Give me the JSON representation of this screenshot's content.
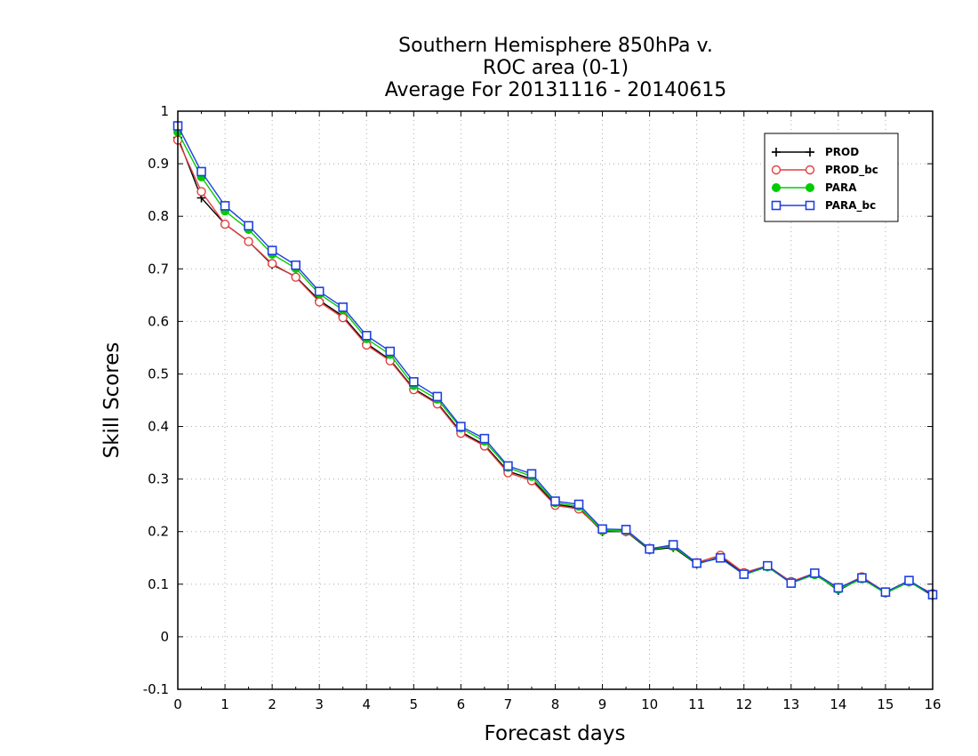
{
  "chart_data": {
    "type": "line",
    "title_lines": [
      "Southern Hemisphere 850hPa v.",
      "ROC area (0-1)",
      "Average For 20131116 - 20140615"
    ],
    "xlabel": "Forecast days",
    "ylabel": "Skill Scores",
    "xlim": [
      0,
      16
    ],
    "ylim": [
      -0.1,
      1
    ],
    "x_ticks": [
      "0",
      "1",
      "2",
      "3",
      "4",
      "5",
      "6",
      "7",
      "8",
      "9",
      "10",
      "11",
      "12",
      "13",
      "14",
      "15",
      "16"
    ],
    "y_ticks": [
      "-0.1",
      "0",
      "0.1",
      "0.2",
      "0.3",
      "0.4",
      "0.5",
      "0.6",
      "0.7",
      "0.8",
      "0.9",
      "1"
    ],
    "grid": true,
    "legend_position": "top-right",
    "x": [
      0,
      0.5,
      1,
      1.5,
      2,
      2.5,
      3,
      3.5,
      4,
      4.5,
      5,
      5.5,
      6,
      6.5,
      7,
      7.5,
      8,
      8.5,
      9,
      9.5,
      10,
      10.5,
      11,
      11.5,
      12,
      12.5,
      13,
      13.5,
      14,
      14.5,
      15,
      15.5,
      16
    ],
    "series": [
      {
        "name": "PROD",
        "color": "#000000",
        "marker": "plus",
        "values": [
          0.95,
          0.835,
          0.785,
          0.752,
          0.708,
          0.685,
          0.64,
          0.61,
          0.558,
          0.527,
          0.472,
          0.445,
          0.39,
          0.365,
          0.315,
          0.3,
          0.252,
          0.245,
          0.2,
          0.2,
          0.165,
          0.17,
          0.138,
          0.152,
          0.12,
          0.133,
          0.102,
          0.12,
          0.088,
          0.112,
          0.083,
          0.105,
          0.078
        ]
      },
      {
        "name": "PROD_bc",
        "color": "#e04040",
        "marker": "circle",
        "values": [
          0.945,
          0.847,
          0.785,
          0.752,
          0.71,
          0.684,
          0.637,
          0.607,
          0.555,
          0.525,
          0.47,
          0.443,
          0.387,
          0.363,
          0.312,
          0.297,
          0.25,
          0.243,
          0.202,
          0.2,
          0.168,
          0.172,
          0.141,
          0.155,
          0.122,
          0.135,
          0.105,
          0.121,
          0.092,
          0.114,
          0.085,
          0.105,
          0.082
        ]
      },
      {
        "name": "PARA",
        "color": "#00cc00",
        "marker": "filled-circle",
        "values": [
          0.96,
          0.875,
          0.81,
          0.775,
          0.728,
          0.701,
          0.652,
          0.622,
          0.567,
          0.537,
          0.478,
          0.452,
          0.397,
          0.372,
          0.322,
          0.305,
          0.255,
          0.248,
          0.202,
          0.202,
          0.166,
          0.172,
          0.139,
          0.15,
          0.118,
          0.133,
          0.102,
          0.118,
          0.09,
          0.11,
          0.083,
          0.104,
          0.08
        ]
      },
      {
        "name": "PARA_bc",
        "color": "#2040e0",
        "marker": "square",
        "values": [
          0.972,
          0.885,
          0.82,
          0.782,
          0.735,
          0.707,
          0.657,
          0.627,
          0.573,
          0.543,
          0.485,
          0.457,
          0.4,
          0.377,
          0.325,
          0.31,
          0.258,
          0.252,
          0.205,
          0.204,
          0.167,
          0.175,
          0.14,
          0.15,
          0.119,
          0.135,
          0.102,
          0.121,
          0.093,
          0.112,
          0.085,
          0.107,
          0.08
        ]
      }
    ]
  }
}
